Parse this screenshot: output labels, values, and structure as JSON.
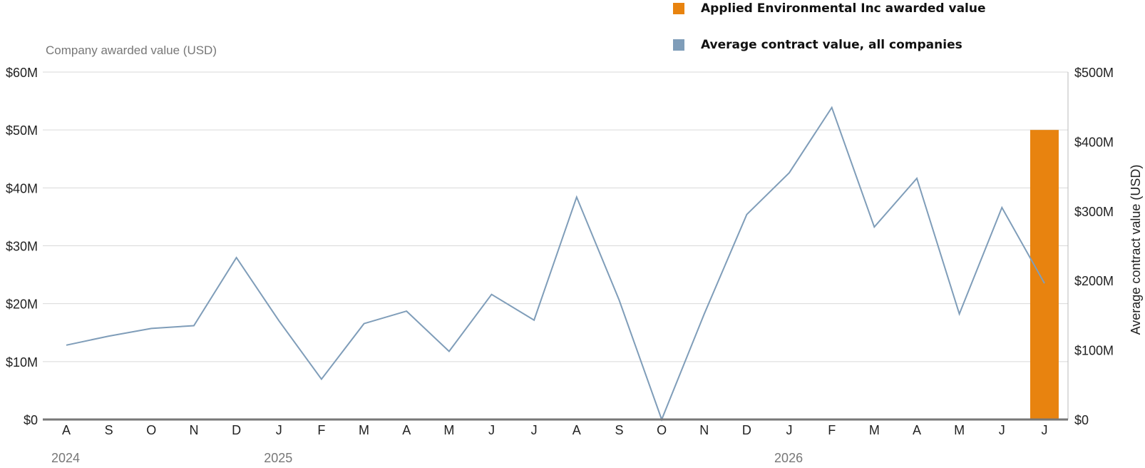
{
  "legend": {
    "company_label": "Applied Environmental Inc awarded value",
    "average_label": "Average contract value, all companies"
  },
  "colors": {
    "company": "#E8830F",
    "average": "#7F9DB9",
    "grid": "#D9D9D9",
    "baseline": "#777777"
  },
  "chart_data": {
    "type": "bar+line",
    "x_months": [
      "2024-08",
      "2024-09",
      "2024-10",
      "2024-11",
      "2024-12",
      "2025-01",
      "2025-02",
      "2025-03",
      "2025-04",
      "2025-05",
      "2025-06",
      "2025-07",
      "2025-08",
      "2025-09",
      "2025-10",
      "2025-11",
      "2025-12",
      "2026-01",
      "2026-02",
      "2026-03",
      "2026-04",
      "2026-05",
      "2026-06",
      "2026-07"
    ],
    "x_tick_labels": [
      "A",
      "S",
      "O",
      "N",
      "D",
      "J",
      "F",
      "M",
      "A",
      "M",
      "J",
      "J",
      "A",
      "S",
      "O",
      "N",
      "D",
      "J",
      "F",
      "M",
      "A",
      "M",
      "J",
      "J"
    ],
    "year_labels": [
      {
        "label": "2024",
        "month": "2024-08"
      },
      {
        "label": "2025",
        "month": "2025-01"
      },
      {
        "label": "2026",
        "month": "2026-01"
      }
    ],
    "left_axis": {
      "title": "Company awarded value (USD)",
      "range": [
        0,
        60000000
      ],
      "ticks": [
        0,
        10000000,
        20000000,
        30000000,
        40000000,
        50000000,
        60000000
      ],
      "tick_labels": [
        "$0",
        "$10M",
        "$20M",
        "$30M",
        "$40M",
        "$50M",
        "$60M"
      ]
    },
    "right_axis": {
      "title": "Average contract value (USD)",
      "range": [
        0,
        500000000
      ],
      "ticks": [
        0,
        100000000,
        200000000,
        300000000,
        400000000,
        500000000
      ],
      "tick_labels": [
        "$0",
        "$100M",
        "$200M",
        "$300M",
        "$400M",
        "$500M"
      ]
    },
    "series": [
      {
        "name": "Applied Environmental Inc awarded value",
        "type": "bar",
        "axis": "left",
        "values": [
          0,
          0,
          0,
          0,
          0,
          0,
          0,
          0,
          0,
          0,
          0,
          0,
          0,
          0,
          0,
          0,
          0,
          0,
          0,
          0,
          0,
          0,
          0,
          50000000
        ]
      },
      {
        "name": "Average contract value, all companies",
        "type": "line",
        "axis": "right",
        "values": [
          107000000,
          120000000,
          131000000,
          135000000,
          233000000,
          142000000,
          58000000,
          138000000,
          156000000,
          98000000,
          180000000,
          143000000,
          320000000,
          172000000,
          0,
          152000000,
          295000000,
          355000000,
          449000000,
          277000000,
          347000000,
          152000000,
          305000000,
          196000000
        ]
      }
    ],
    "grid": true
  }
}
